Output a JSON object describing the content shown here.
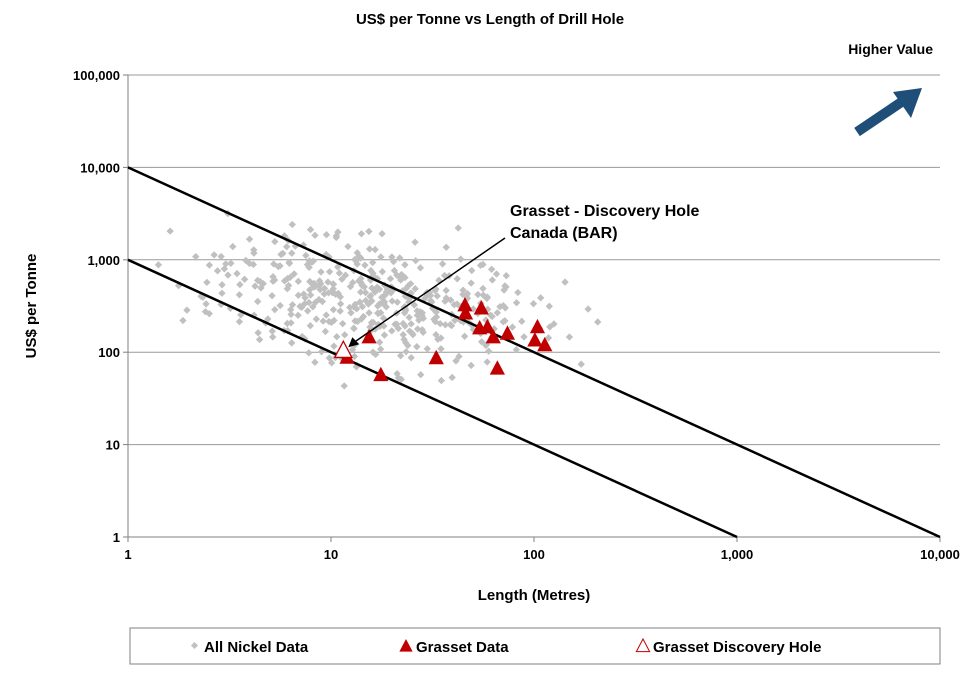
{
  "chart_data": {
    "type": "scatter",
    "title": "US$ per Tonne vs Length of Drill Hole",
    "xlabel": "Length (Metres)",
    "ylabel": "US$ per Tonne",
    "xscale": "log",
    "yscale": "log",
    "xlim": [
      1,
      10000
    ],
    "ylim": [
      1,
      100000
    ],
    "x_ticks": [
      "1",
      "10",
      "100",
      "1,000",
      "10,000"
    ],
    "y_ticks": [
      "1",
      "10",
      "100",
      "1,000",
      "10,000",
      "100,000"
    ],
    "grid": "horizontal",
    "legend_position": "bottom",
    "reference_lines": [
      {
        "from": [
          1,
          10000
        ],
        "to": [
          10000,
          1
        ]
      },
      {
        "from": [
          1,
          1000
        ],
        "to": [
          1000,
          1
        ]
      }
    ],
    "series": [
      {
        "name": "All Nickel Data",
        "marker": "diamond",
        "color": "#c0c0c0",
        "count_approx": 450,
        "note_values": "dense cloud roughly spanning x 1–650 m, y 15–3,500 US$/t"
      },
      {
        "name": "Grasset Data",
        "marker": "triangle",
        "color": "#c00000",
        "points": [
          [
            15.4,
            146
          ],
          [
            45.7,
            324
          ],
          [
            46,
            265
          ],
          [
            55,
            300
          ],
          [
            54,
            183
          ],
          [
            59,
            188
          ],
          [
            63,
            146
          ],
          [
            74,
            160
          ],
          [
            104,
            188
          ],
          [
            101,
            135
          ],
          [
            113,
            120
          ],
          [
            33,
            87
          ],
          [
            66,
            67
          ],
          [
            17.6,
            57
          ],
          [
            12,
            88
          ]
        ]
      },
      {
        "name": "Grasset Discovery Hole",
        "marker": "triangle-open",
        "color": "#c00000",
        "points": [
          [
            11.5,
            105
          ]
        ]
      }
    ],
    "annotations": [
      {
        "text_lines": [
          "Grasset - Discovery Hole",
          "Canada  (BAR)"
        ],
        "points_to": [
          11.5,
          105
        ]
      },
      {
        "text": "Higher Value",
        "arrow_color": "#1f4e79"
      }
    ]
  }
}
